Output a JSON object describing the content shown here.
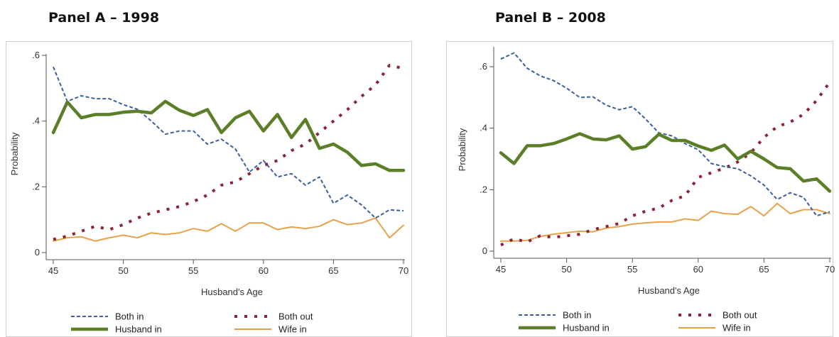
{
  "panels": [
    {
      "title": "Panel A – 1998"
    },
    {
      "title": "Panel B – 2008"
    }
  ],
  "colors": {
    "both_in": "#3a5f9f",
    "both_out": "#8b2333",
    "husband_in": "#5a7f27",
    "wife_in": "#e8a149",
    "axis": "#555555",
    "border": "#d0d0d0"
  },
  "chart_data": [
    {
      "type": "line",
      "title": "Panel A – 1998",
      "xlabel": "Husband's Age",
      "ylabel": "Probability",
      "xlim": [
        45,
        70
      ],
      "ylim": [
        0,
        0.6
      ],
      "xticks": [
        45,
        50,
        55,
        60,
        65,
        70
      ],
      "yticks": [
        0,
        0.2,
        0.4,
        0.6
      ],
      "xtick_labels": [
        "45",
        "50",
        "55",
        "60",
        "65",
        "70"
      ],
      "ytick_labels": [
        "0",
        ".2",
        ".4",
        ".6"
      ],
      "grid": false,
      "legend_position": "bottom",
      "x": [
        45,
        46,
        47,
        48,
        49,
        50,
        51,
        52,
        53,
        54,
        55,
        56,
        57,
        58,
        59,
        60,
        61,
        62,
        63,
        64,
        65,
        66,
        67,
        68,
        69,
        70
      ],
      "series": [
        {
          "name": "Both in",
          "style": "dashed",
          "color": "#3a5f9f",
          "values": [
            0.565,
            0.46,
            0.477,
            0.468,
            0.468,
            0.45,
            0.436,
            0.4,
            0.36,
            0.37,
            0.37,
            0.33,
            0.345,
            0.315,
            0.245,
            0.28,
            0.23,
            0.24,
            0.205,
            0.23,
            0.15,
            0.175,
            0.145,
            0.105,
            0.13,
            0.127
          ]
        },
        {
          "name": "Both out",
          "style": "dotted",
          "color": "#8b2333",
          "values": [
            0.04,
            0.05,
            0.065,
            0.08,
            0.07,
            0.085,
            0.105,
            0.12,
            0.13,
            0.14,
            0.155,
            0.175,
            0.205,
            0.215,
            0.24,
            0.265,
            0.28,
            0.31,
            0.33,
            0.365,
            0.4,
            0.435,
            0.475,
            0.51,
            0.57,
            0.56
          ]
        },
        {
          "name": "Husband in",
          "style": "solid-thick",
          "color": "#5a7f27",
          "values": [
            0.365,
            0.458,
            0.41,
            0.42,
            0.42,
            0.427,
            0.43,
            0.425,
            0.46,
            0.433,
            0.417,
            0.435,
            0.365,
            0.41,
            0.43,
            0.37,
            0.42,
            0.35,
            0.405,
            0.317,
            0.33,
            0.305,
            0.265,
            0.27,
            0.25,
            0.25
          ]
        },
        {
          "name": "Wife in",
          "style": "solid",
          "color": "#e8a149",
          "values": [
            0.035,
            0.045,
            0.048,
            0.035,
            0.045,
            0.053,
            0.045,
            0.06,
            0.055,
            0.06,
            0.073,
            0.065,
            0.088,
            0.065,
            0.09,
            0.09,
            0.07,
            0.078,
            0.073,
            0.08,
            0.1,
            0.085,
            0.09,
            0.105,
            0.045,
            0.083
          ]
        }
      ]
    },
    {
      "type": "line",
      "title": "Panel B – 2008",
      "xlabel": "Husband's Age",
      "ylabel": "Probability",
      "xlim": [
        45,
        70
      ],
      "ylim": [
        0,
        0.66
      ],
      "xticks": [
        45,
        50,
        55,
        60,
        65,
        70
      ],
      "yticks": [
        0,
        0.2,
        0.4,
        0.6
      ],
      "xtick_labels": [
        "45",
        "50",
        "55",
        "60",
        "65",
        "70"
      ],
      "ytick_labels": [
        "0",
        ".2",
        ".4",
        ".6"
      ],
      "grid": false,
      "legend_position": "bottom",
      "x": [
        45,
        46,
        47,
        48,
        49,
        50,
        51,
        52,
        53,
        54,
        55,
        56,
        57,
        58,
        59,
        60,
        61,
        62,
        63,
        64,
        65,
        66,
        67,
        68,
        69,
        70
      ],
      "series": [
        {
          "name": "Both in",
          "style": "dashed",
          "color": "#3a5f9f",
          "values": [
            0.625,
            0.645,
            0.595,
            0.57,
            0.555,
            0.53,
            0.5,
            0.502,
            0.475,
            0.46,
            0.47,
            0.43,
            0.385,
            0.375,
            0.35,
            0.33,
            0.285,
            0.275,
            0.268,
            0.245,
            0.215,
            0.168,
            0.19,
            0.175,
            0.115,
            0.128
          ]
        },
        {
          "name": "Both out",
          "style": "dotted",
          "color": "#8b2333",
          "values": [
            0.02,
            0.04,
            0.03,
            0.05,
            0.045,
            0.05,
            0.055,
            0.07,
            0.08,
            0.09,
            0.115,
            0.13,
            0.14,
            0.165,
            0.18,
            0.24,
            0.255,
            0.27,
            0.29,
            0.32,
            0.37,
            0.405,
            0.42,
            0.445,
            0.49,
            0.55
          ]
        },
        {
          "name": "Husband in",
          "style": "solid-thick",
          "color": "#5a7f27",
          "values": [
            0.32,
            0.285,
            0.343,
            0.343,
            0.35,
            0.365,
            0.382,
            0.365,
            0.362,
            0.375,
            0.332,
            0.34,
            0.38,
            0.36,
            0.36,
            0.342,
            0.328,
            0.345,
            0.3,
            0.325,
            0.3,
            0.272,
            0.268,
            0.228,
            0.235,
            0.195
          ]
        },
        {
          "name": "Wife in",
          "style": "solid",
          "color": "#e8a149",
          "values": [
            0.033,
            0.033,
            0.035,
            0.048,
            0.055,
            0.06,
            0.065,
            0.063,
            0.075,
            0.08,
            0.088,
            0.092,
            0.095,
            0.095,
            0.105,
            0.1,
            0.13,
            0.122,
            0.12,
            0.145,
            0.115,
            0.155,
            0.122,
            0.135,
            0.135,
            0.122
          ]
        }
      ]
    }
  ]
}
